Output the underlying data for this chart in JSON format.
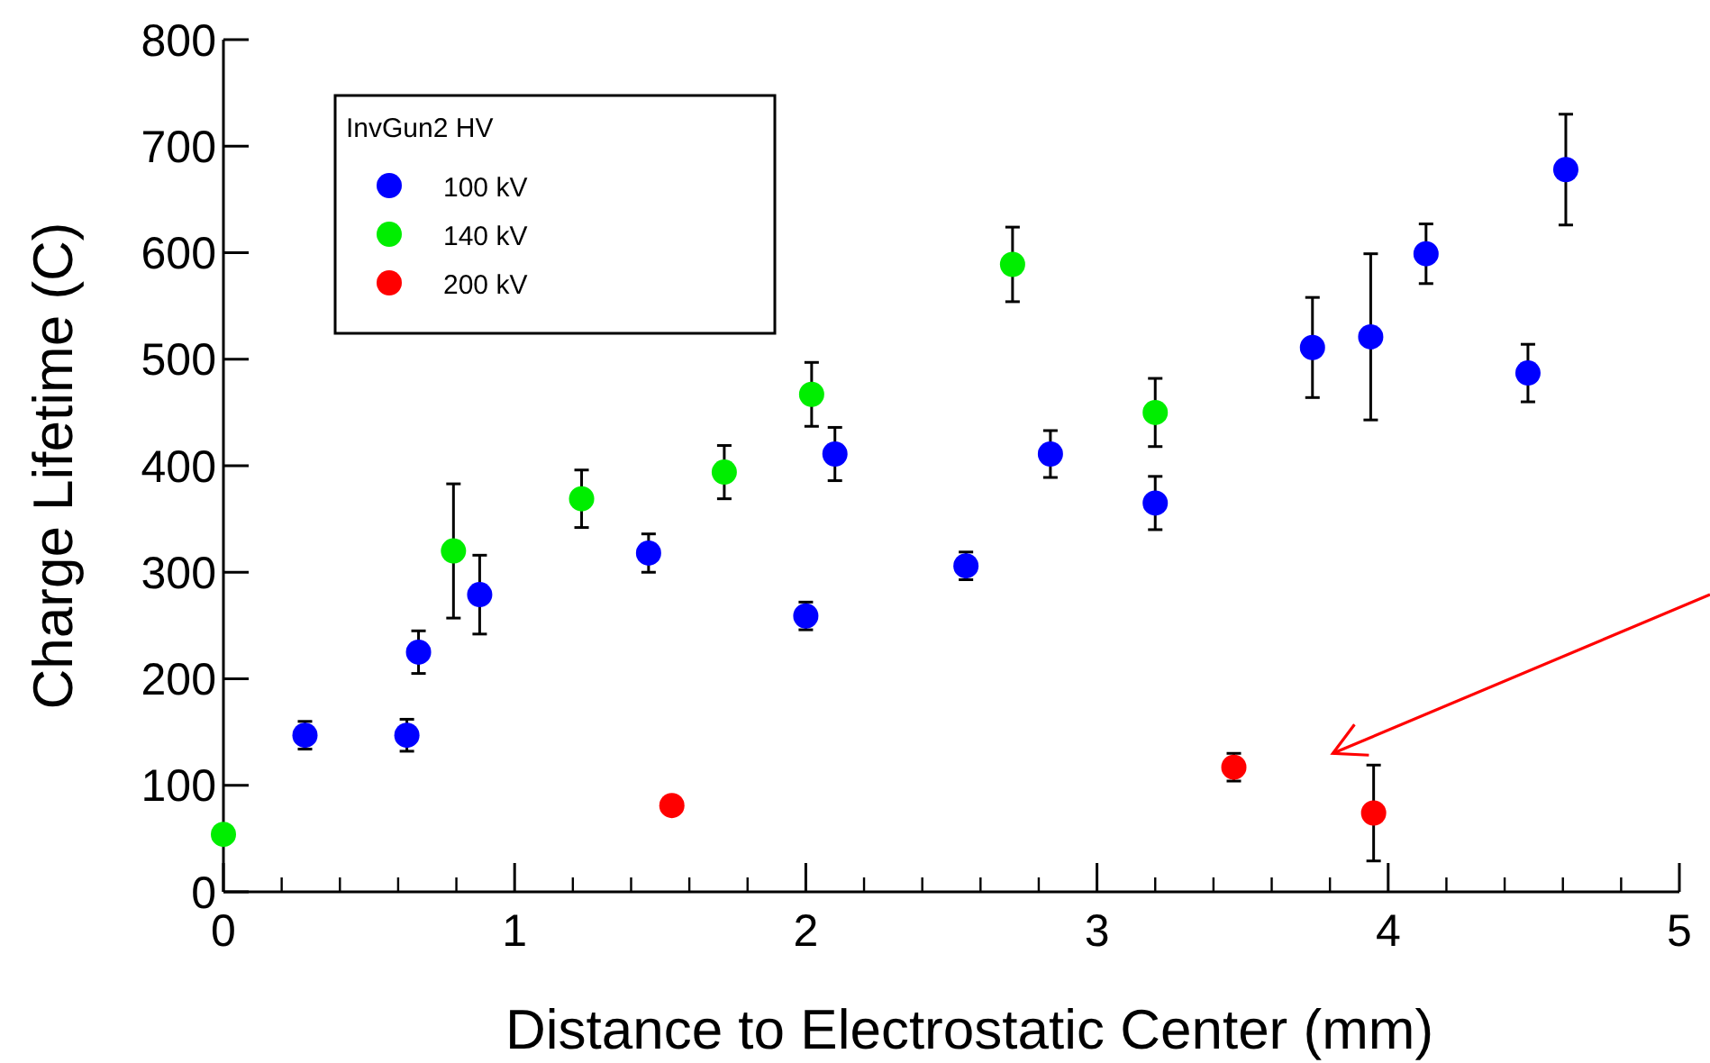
{
  "chart_data": {
    "type": "scatter",
    "xlabel": "Distance to Electrostatic Center (mm)",
    "ylabel": "Charge Lifetime (C)",
    "legend_title": "InvGun2 HV",
    "legend": "top left",
    "marker": "circle",
    "grid": false,
    "xlim": [
      0,
      5
    ],
    "xticks": [
      0,
      1,
      2,
      3,
      4,
      5
    ],
    "ylim": [
      0,
      800
    ],
    "yticks": [
      0,
      100,
      200,
      300,
      400,
      500,
      600,
      700,
      800
    ],
    "series": [
      {
        "name": "100 kV",
        "color": "#0000ff",
        "x": [
          0.28,
          0.63,
          0.67,
          0.88,
          1.46,
          2.0,
          2.1,
          2.55,
          2.84,
          3.2,
          3.74,
          3.94,
          4.13,
          4.48,
          4.61
        ],
        "values": [
          147,
          147,
          225,
          279,
          318,
          259,
          411,
          306,
          411,
          365,
          511,
          521,
          599,
          487,
          678
        ],
        "errors": [
          13,
          15,
          20,
          37,
          18,
          13,
          25,
          13,
          22,
          25,
          47,
          78,
          28,
          27,
          52
        ]
      },
      {
        "name": "140 kV",
        "color": "#00ee00",
        "x": [
          0,
          0.79,
          1.23,
          1.72,
          2.02,
          2.71,
          3.2
        ],
        "values": [
          54,
          320,
          369,
          394,
          467,
          589,
          450
        ],
        "errors": [
          null,
          63,
          27,
          25,
          30,
          35,
          32
        ]
      },
      {
        "name": "200 kV",
        "color": "#ff0000",
        "x": [
          1.54,
          3.47,
          3.95
        ],
        "values": [
          81,
          117,
          74
        ],
        "errors": [
          null,
          13,
          45
        ]
      }
    ]
  }
}
